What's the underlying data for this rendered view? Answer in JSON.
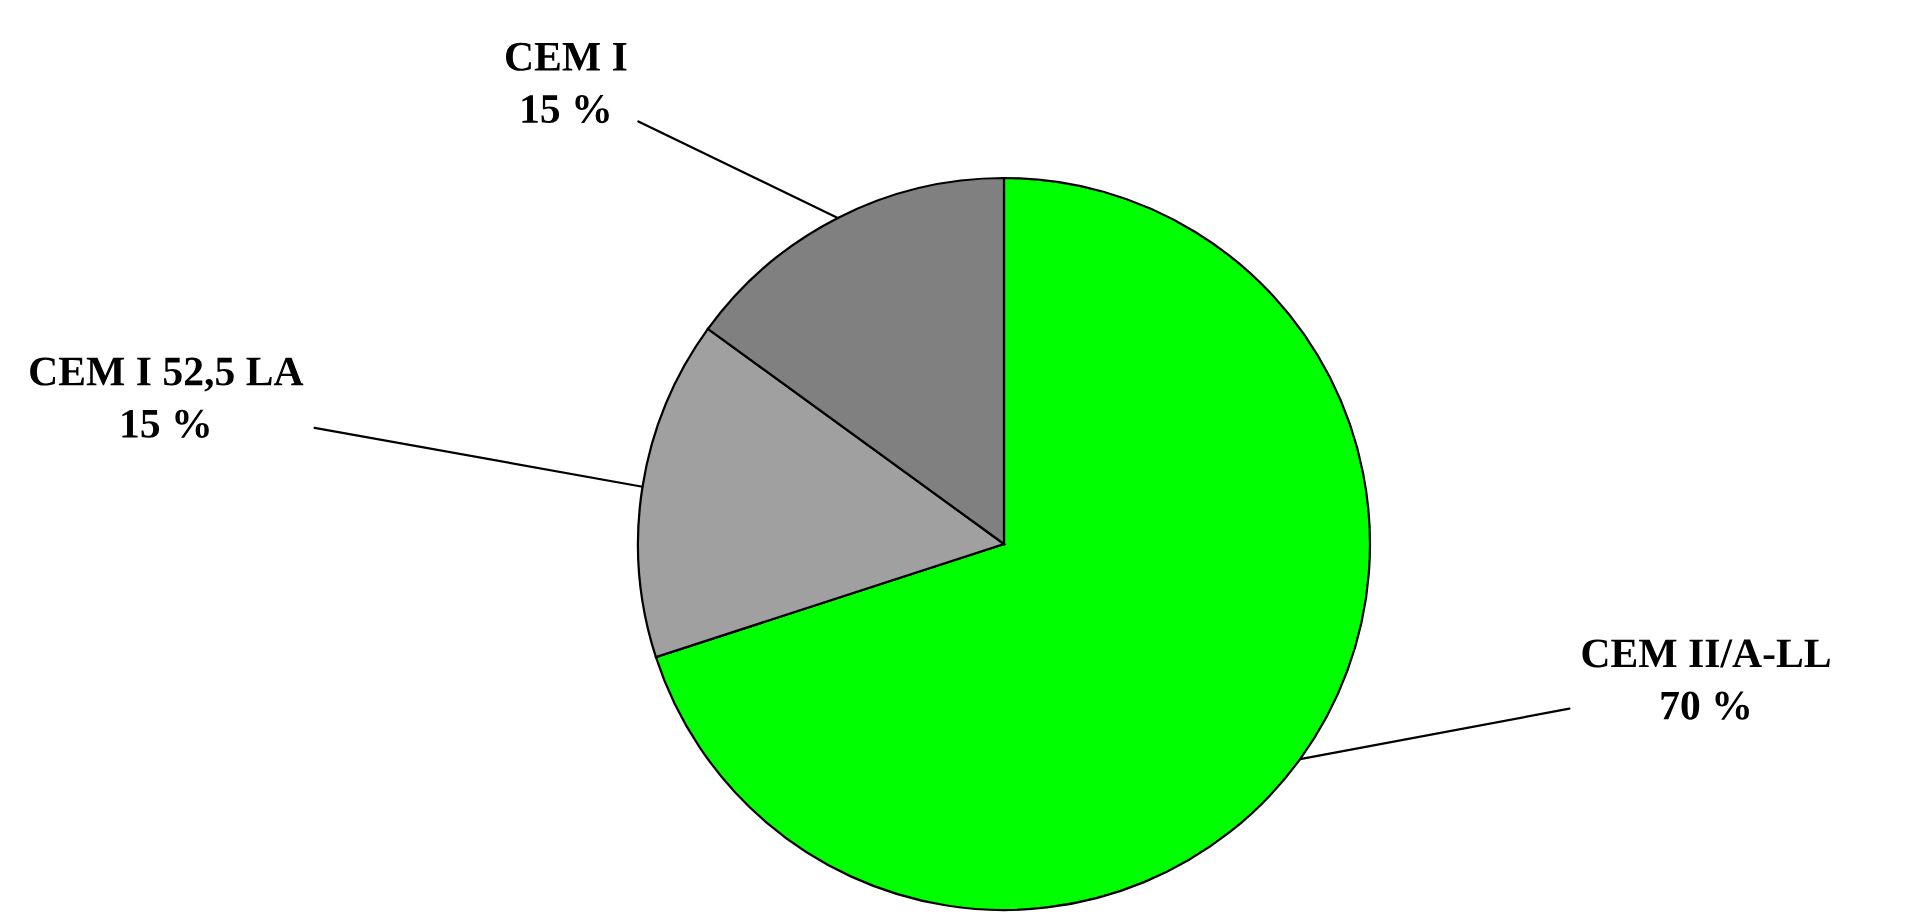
{
  "chart_data": {
    "type": "pie",
    "categories": [
      "CEM II/A-LL",
      "CEM I 52,5 LA",
      "CEM I"
    ],
    "values": [
      70,
      15,
      15
    ],
    "colors": [
      "#00ff00",
      "#a0a0a0",
      "#808080"
    ],
    "value_labels": [
      "70 %",
      "15 %",
      "15 %"
    ],
    "legend": false
  }
}
